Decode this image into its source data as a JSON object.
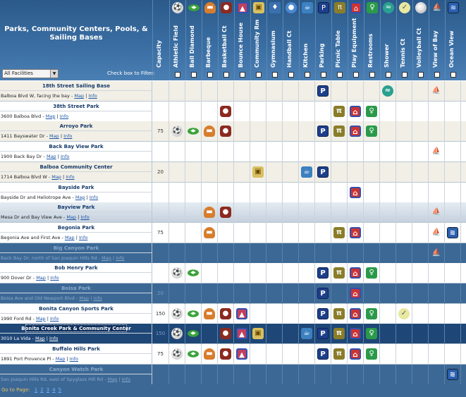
{
  "title": "Parks, Community Centers, Pools, & Sailing Bases",
  "filter": {
    "selected": "All Facilities",
    "label": "Check box to Filter:"
  },
  "columns": [
    {
      "key": "capacity",
      "label": "Capacity",
      "icon": ""
    },
    {
      "key": "athletic",
      "label": "Athletic Field",
      "icon": "athletic-field-icon"
    },
    {
      "key": "diamond",
      "label": "Ball Diamond",
      "icon": "ball-diamond-icon"
    },
    {
      "key": "bbq",
      "label": "Barbeque",
      "icon": "barbeque-icon"
    },
    {
      "key": "basketball",
      "label": "Basketball Ct",
      "icon": "basketball-icon"
    },
    {
      "key": "bounce",
      "label": "Bounce House",
      "icon": "bounce-house-icon"
    },
    {
      "key": "community",
      "label": "Community Rm",
      "icon": "community-room-icon"
    },
    {
      "key": "gym",
      "label": "Gymnasium",
      "icon": "gymnasium-icon"
    },
    {
      "key": "handball",
      "label": "Handball Ct",
      "icon": "handball-icon"
    },
    {
      "key": "kitchen",
      "label": "Kitchen",
      "icon": "kitchen-icon"
    },
    {
      "key": "parking",
      "label": "Parking",
      "icon": "parking-icon"
    },
    {
      "key": "picnic",
      "label": "Picnic Table",
      "icon": "picnic-table-icon"
    },
    {
      "key": "play",
      "label": "Play Equipment",
      "icon": "play-equipment-icon"
    },
    {
      "key": "restrooms",
      "label": "Restrooms",
      "icon": "restrooms-icon"
    },
    {
      "key": "shower",
      "label": "Shower",
      "icon": "shower-icon"
    },
    {
      "key": "tennis",
      "label": "Tennis Ct",
      "icon": "tennis-icon"
    },
    {
      "key": "volleyball",
      "label": "Volleyball Ct",
      "icon": "volleyball-icon"
    },
    {
      "key": "bayview",
      "label": "View of Bay",
      "icon": "bay-view-icon"
    },
    {
      "key": "oceanview",
      "label": "Ocean View",
      "icon": "ocean-view-icon"
    }
  ],
  "links": {
    "map": "Map",
    "info": "Info"
  },
  "rows": [
    {
      "name": "18th Street Sailing Base",
      "address": "Balboa Blvd W, facing the bay -",
      "capacity": "",
      "amenities": [
        "parking",
        "shower",
        "bayview"
      ]
    },
    {
      "name": "38th Street Park",
      "address": "3600 Balboa Blvd -",
      "capacity": "",
      "amenities": [
        "basketball",
        "picnic",
        "play",
        "restrooms"
      ]
    },
    {
      "name": "Arroyo Park",
      "address": "1411 Bayswater Dr -",
      "capacity": "75",
      "amenities": [
        "athletic",
        "diamond",
        "bbq",
        "basketball",
        "parking",
        "picnic",
        "play",
        "restrooms"
      ]
    },
    {
      "name": "Back Bay View Park",
      "address": "1900 Back Bay Dr -",
      "capacity": "",
      "amenities": [
        "bayview"
      ]
    },
    {
      "name": "Balboa Community Center",
      "address": "1714 Balboa Blvd W -",
      "capacity": "20",
      "amenities": [
        "community",
        "kitchen",
        "parking"
      ]
    },
    {
      "name": "Bayside Park",
      "address": "Bayside Dr and Heliotrope Ave -",
      "capacity": "",
      "amenities": [
        "play"
      ]
    },
    {
      "name": "Bayview Park",
      "address": "Mesa Dr and Bay View Ave -",
      "capacity": "",
      "amenities": [
        "bbq",
        "basketball",
        "bayview"
      ]
    },
    {
      "name": "Begonia Park",
      "address": "Begonia Ave and First Ave -",
      "capacity": "75",
      "amenities": [
        "bbq",
        "picnic",
        "play",
        "bayview",
        "oceanview"
      ]
    },
    {
      "name": "Big Canyon Park",
      "address": "Back Bay Dr, north of San Joaquin Hills Rd -",
      "capacity": "",
      "amenities": [
        "bayview"
      ]
    },
    {
      "name": "Bob Henry Park",
      "address": "900 Dover Dr -",
      "capacity": "",
      "amenities": [
        "athletic",
        "diamond",
        "parking",
        "picnic",
        "play",
        "restrooms"
      ]
    },
    {
      "name": "Boisa Park",
      "address": "Boisa Ave and Old Newport Blvd -",
      "capacity": "20",
      "amenities": [
        "parking",
        "play"
      ]
    },
    {
      "name": "Bonita Canyon Sports Park",
      "address": "1990 Ford Rd -",
      "capacity": "150",
      "amenities": [
        "athletic",
        "diamond",
        "bbq",
        "basketball",
        "bounce",
        "parking",
        "picnic",
        "play",
        "restrooms",
        "tennis"
      ]
    },
    {
      "name": "Bonita Creek Park & Community Center",
      "address": "3010 La Vida -",
      "capacity": "150",
      "amenities": [
        "athletic",
        "diamond",
        "basketball",
        "bounce",
        "community",
        "kitchen",
        "parking",
        "picnic",
        "play",
        "restrooms"
      ]
    },
    {
      "name": "Buffalo Hills Park",
      "address": "1891 Port Provence Pl -",
      "capacity": "75",
      "amenities": [
        "athletic",
        "diamond",
        "bbq",
        "basketball",
        "bounce",
        "parking",
        "picnic",
        "play",
        "restrooms"
      ]
    },
    {
      "name": "Canyon Watch Park",
      "address": "San Joaquin Hills Rd, east of Spyglass Hill Rd -",
      "capacity": "",
      "amenities": [
        "oceanview"
      ]
    }
  ],
  "footer": {
    "label": "Go to Page:",
    "pages": [
      "1",
      "2",
      "3",
      "4",
      "5"
    ]
  }
}
